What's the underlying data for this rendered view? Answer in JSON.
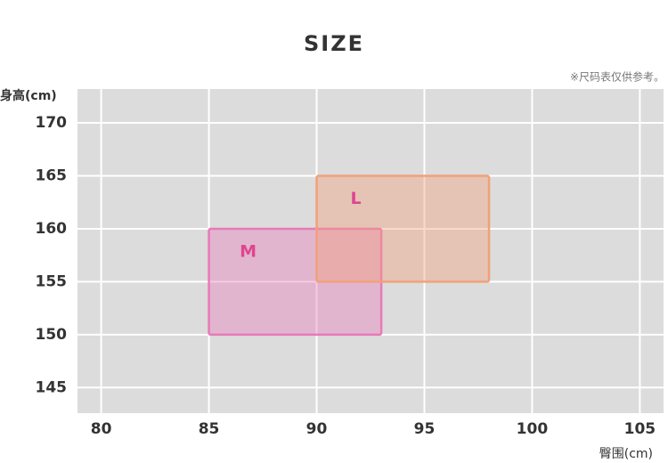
{
  "chart_data": {
    "type": "range-box",
    "title": "SIZE",
    "note": "※尺码表仅供参考。",
    "y_label": "身高(cm)",
    "x_label": "臀围(cm)",
    "xlim": [
      78.9,
      106.1
    ],
    "xticks": [
      80,
      85,
      90,
      95,
      100,
      105
    ],
    "ylim": [
      142.5,
      173.2
    ],
    "yticks": [
      145,
      150,
      155,
      160,
      165,
      170
    ],
    "grid": true,
    "boxes": [
      {
        "name": "M",
        "x": [
          85,
          93
        ],
        "y": [
          150,
          160
        ],
        "color": "#e87ab8"
      },
      {
        "name": "L",
        "x": [
          90,
          98
        ],
        "y": [
          155,
          165
        ],
        "color": "#f2a07a"
      }
    ]
  }
}
